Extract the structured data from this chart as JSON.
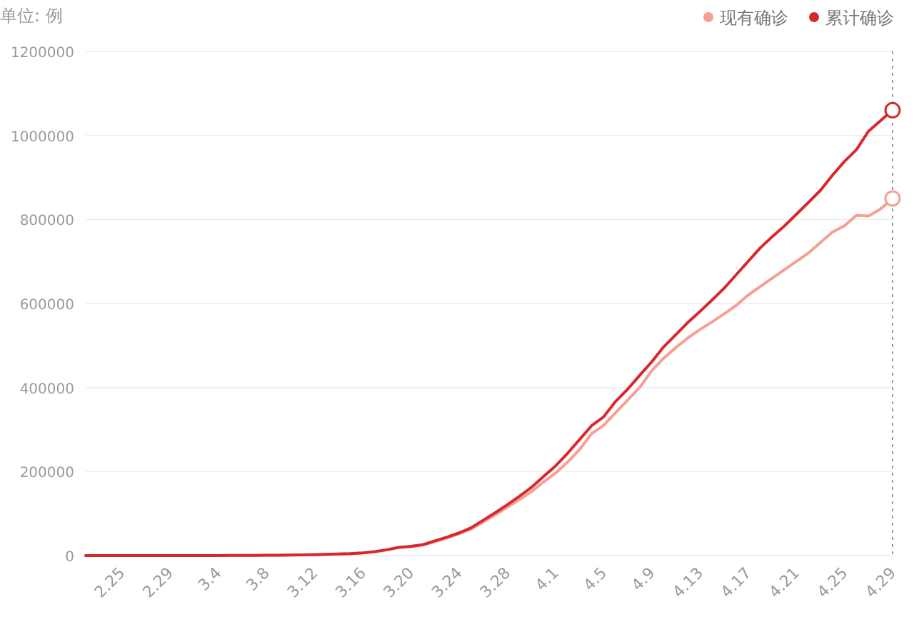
{
  "chart_data": {
    "type": "line",
    "ylabel": "单位: 例",
    "legend": "top right",
    "grid": "y",
    "line_style": "solid",
    "marker": "none",
    "categories": [
      null,
      null,
      null,
      "2.25",
      null,
      null,
      null,
      "2.29",
      null,
      null,
      null,
      "3.4",
      null,
      null,
      null,
      "3.8",
      null,
      null,
      null,
      "3.12",
      null,
      null,
      null,
      "3.16",
      null,
      null,
      null,
      "3.20",
      null,
      null,
      null,
      "3.24",
      null,
      null,
      null,
      "3.28",
      null,
      null,
      null,
      "4.1",
      null,
      null,
      null,
      "4.5",
      null,
      null,
      null,
      "4.9",
      null,
      null,
      null,
      "4.13",
      null,
      null,
      null,
      "4.17",
      null,
      null,
      null,
      "4.21",
      null,
      null,
      null,
      "4.25",
      null,
      null,
      null,
      "4.29"
    ],
    "ylim": [
      0,
      1200000
    ],
    "yticks": [
      0,
      200000,
      400000,
      600000,
      800000,
      1000000,
      1200000
    ],
    "series": [
      {
        "name": "现有确诊",
        "color": "#f4a093",
        "values": [
          0,
          0,
          0,
          0,
          0,
          0,
          0,
          0,
          100,
          100,
          100,
          200,
          300,
          400,
          500,
          700,
          1000,
          1300,
          1700,
          2200,
          2900,
          3700,
          4700,
          6400,
          9300,
          13800,
          19400,
          21000,
          25000,
          33000,
          42000,
          52000,
          63000,
          80000,
          97000,
          115000,
          133000,
          152000,
          175000,
          196000,
          222000,
          252000,
          290000,
          310000,
          340000,
          370000,
          400000,
          440000,
          470000,
          495000,
          518000,
          538000,
          556000,
          575000,
          595000,
          620000,
          640000,
          660000,
          680000,
          700000,
          720000,
          745000,
          770000,
          785000,
          810000,
          808000,
          825000,
          850000
        ]
      },
      {
        "name": "累计确诊",
        "color": "#d7282f",
        "values": [
          0,
          0,
          0,
          0,
          0,
          0,
          0,
          0,
          100,
          100,
          100,
          200,
          300,
          400,
          500,
          700,
          1000,
          1300,
          1700,
          2200,
          2900,
          3700,
          4700,
          6400,
          9300,
          13800,
          19400,
          22000,
          26000,
          35000,
          44000,
          54000,
          66000,
          84000,
          102000,
          121000,
          141000,
          162000,
          188000,
          213000,
          243000,
          276000,
          309000,
          330000,
          367000,
          396000,
          429000,
          461000,
          497000,
          526000,
          555000,
          581000,
          608000,
          636000,
          668000,
          700000,
          732000,
          759000,
          784000,
          812000,
          840000,
          869000,
          905000,
          938000,
          966000,
          1010000,
          1035000,
          1060000
        ]
      },
      {
        "type": "scatter",
        "marker": "circle",
        "x": [
          "4.29",
          "4.29"
        ],
        "values": [
          850000,
          1060000
        ],
        "colors": [
          "#f4a093",
          "#d7282f"
        ]
      }
    ],
    "ref_lines": [
      {
        "axis": "x",
        "value": "4.29",
        "line_style": "dotted",
        "color": "#999999"
      }
    ]
  }
}
